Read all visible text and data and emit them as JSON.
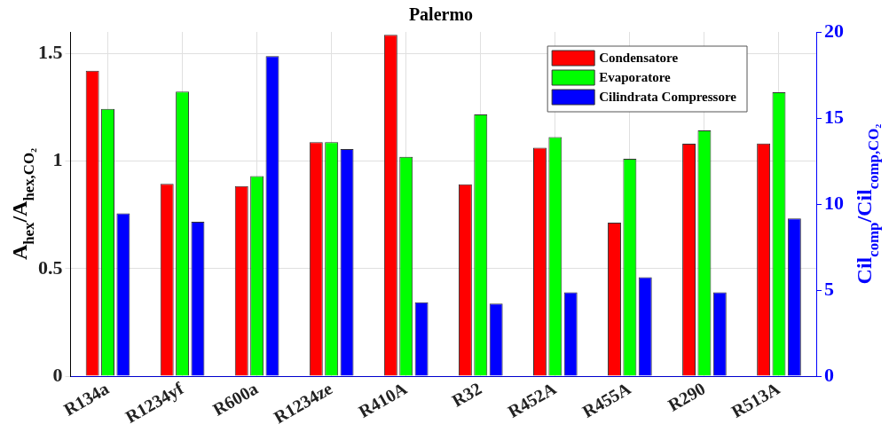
{
  "chart_data": {
    "type": "bar",
    "title": "Palermo",
    "ylabel": "A$_{hex}$/A$_{hex,CO₂}$",
    "y2label": "Cil$_{comp}$/Cil$_{comp,CO₂}$",
    "categories": [
      "R134a",
      "R1234yf",
      "R600a",
      "R1234ze",
      "R410A",
      "R32",
      "R452A",
      "R455A",
      "R290",
      "R513A"
    ],
    "series": [
      {
        "name": "Condensatore",
        "color": "#ff0000",
        "values": [
          1.42,
          0.894,
          0.884,
          1.088,
          1.587,
          0.892,
          1.062,
          0.714,
          1.081,
          1.082
        ]
      },
      {
        "name": "Evaporatore",
        "color": "#00ff00",
        "values": [
          1.242,
          1.323,
          0.93,
          1.088,
          1.02,
          1.217,
          1.111,
          1.01,
          1.142,
          1.32
        ]
      },
      {
        "name": "Cilindrata Compressore",
        "color": "#0000ff",
        "axis": "y2",
        "values": [
          9.46,
          8.97,
          18.6,
          13.2,
          4.3,
          4.22,
          4.88,
          5.75,
          4.88,
          9.17
        ]
      }
    ],
    "ylim": [
      0,
      1.6
    ],
    "yticks": [
      0,
      0.5,
      1,
      1.5
    ],
    "y2lim": [
      0,
      20
    ],
    "y2ticks": [
      0,
      5,
      10,
      15,
      20
    ],
    "grid": true,
    "legend": "top right"
  }
}
